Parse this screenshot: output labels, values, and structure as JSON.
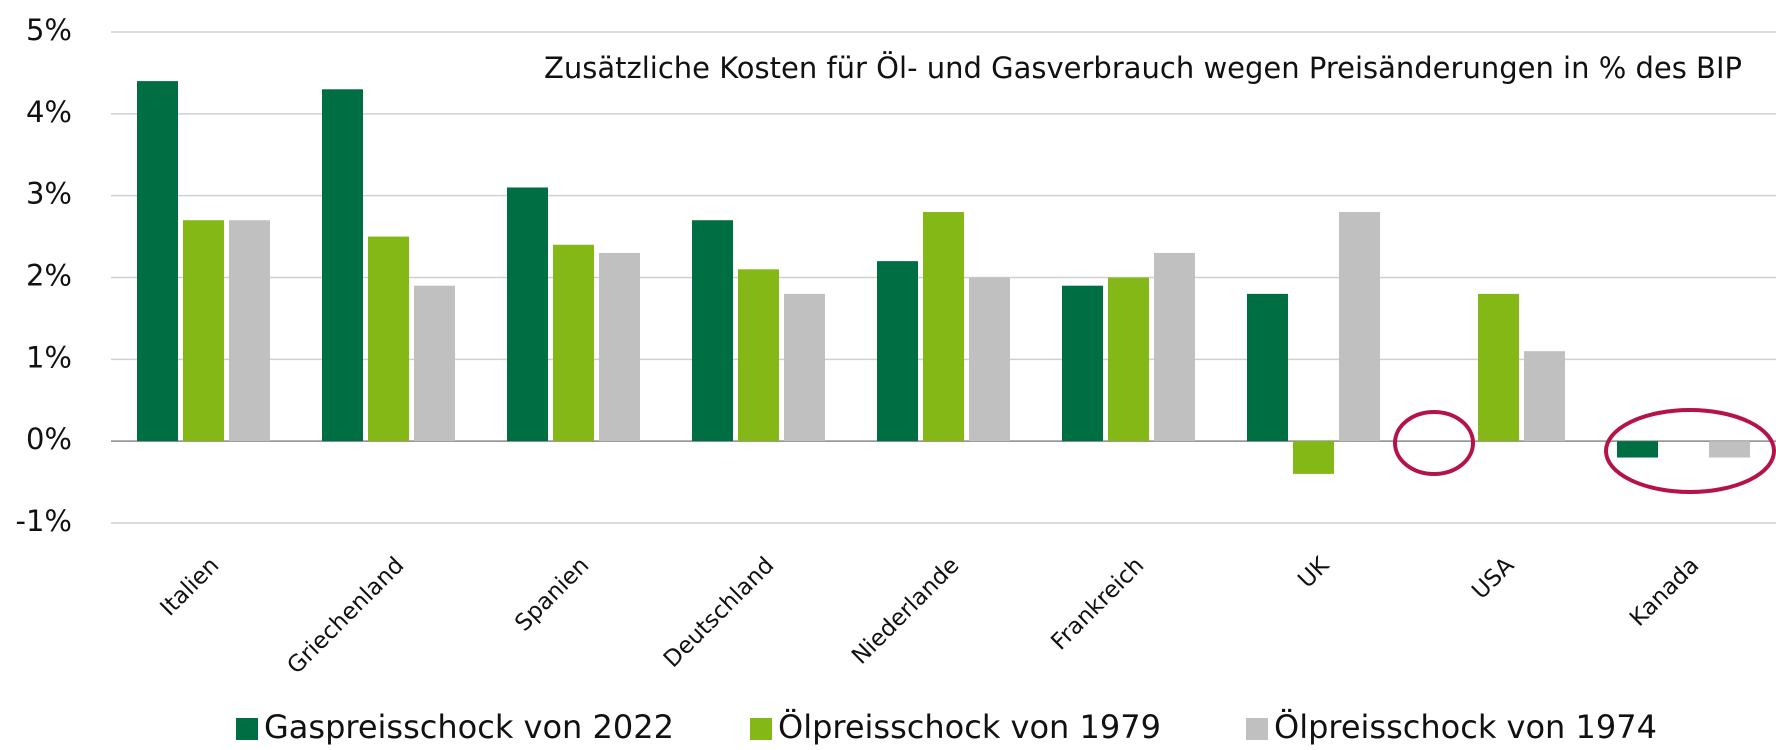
{
  "chart_data": {
    "type": "bar",
    "title": "Zusätzliche Kosten für Öl- und Gasverbrauch wegen Preisänderungen in % des BIP",
    "categories": [
      "Italien",
      "Griechenland",
      "Spanien",
      "Deutschland",
      "Niederlande",
      "Frankreich",
      "UK",
      "USA",
      "Kanada"
    ],
    "series": [
      {
        "name": "Gaspreisschock von 2022",
        "color": "#006e43",
        "values": [
          4.4,
          4.3,
          3.1,
          2.7,
          2.2,
          1.9,
          1.8,
          0,
          -0.2
        ]
      },
      {
        "name": "Ölpreisschock von 1979",
        "color": "#84b817",
        "values": [
          2.7,
          2.5,
          2.4,
          2.1,
          2.8,
          2.0,
          -0.4,
          1.8,
          0
        ]
      },
      {
        "name": "Ölpreisschock von 1974",
        "color": "#c0c0c0",
        "values": [
          2.7,
          1.9,
          2.3,
          1.8,
          2.0,
          2.3,
          2.8,
          1.1,
          -0.2
        ]
      }
    ],
    "ylim": [
      -1,
      5
    ],
    "yticks": [
      {
        "value": -1,
        "label": "-1%"
      },
      {
        "value": 0,
        "label": "0%"
      },
      {
        "value": 1,
        "label": "1%"
      },
      {
        "value": 2,
        "label": "2%"
      },
      {
        "value": 3,
        "label": "3%"
      },
      {
        "value": 4,
        "label": "4%"
      },
      {
        "value": 5,
        "label": "5%"
      }
    ],
    "grid": true,
    "legend": "bottom"
  }
}
